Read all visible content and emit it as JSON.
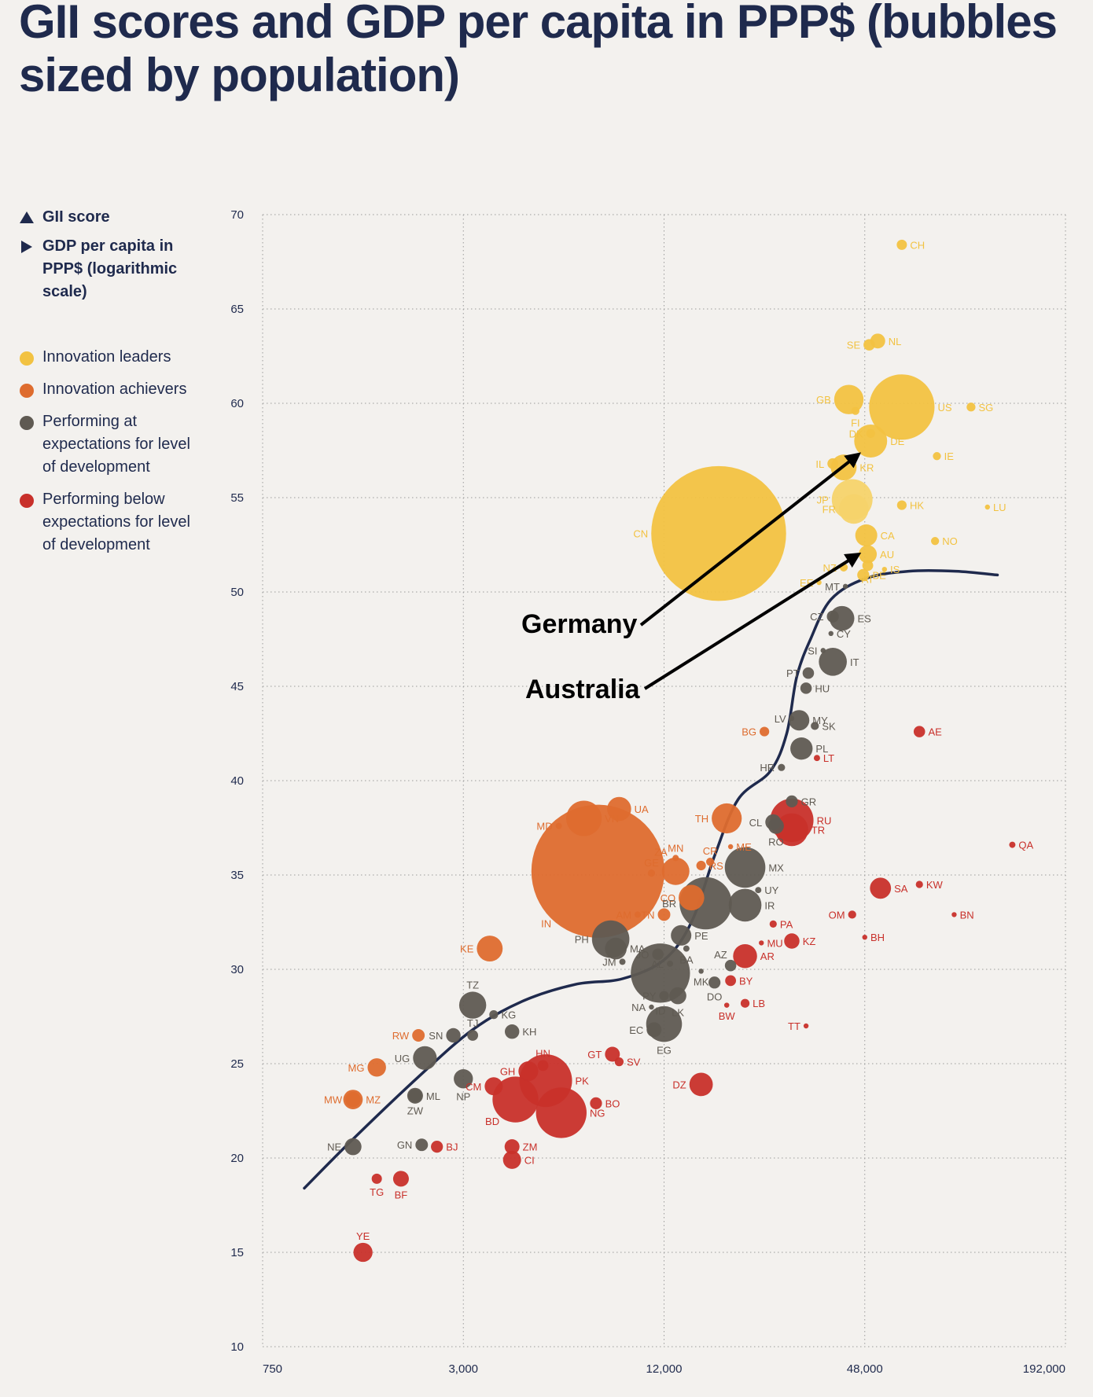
{
  "title": "GII scores and GDP per capita in PPP$ (bubbles sized by population)",
  "legend": {
    "axes": [
      {
        "symbol": "triangle-up",
        "label": "GII score"
      },
      {
        "symbol": "triangle-right",
        "label": "GDP per capita in PPP$ (logarithmic scale)"
      }
    ],
    "groups": [
      {
        "key": "leader",
        "label": "Innovation leaders",
        "color": "#f2c241"
      },
      {
        "key": "achiever",
        "label": "Innovation achievers",
        "color": "#de6c2e"
      },
      {
        "key": "expect",
        "label": "Performing at expectations for level of development",
        "color": "#5f5a52"
      },
      {
        "key": "below",
        "label": "Performing below expectations for level of development",
        "color": "#c8302a"
      }
    ]
  },
  "chart_data": {
    "type": "scatter",
    "xscale": "log",
    "xlim": [
      750,
      192000
    ],
    "ylim": [
      10,
      70
    ],
    "x_ticks": [
      750,
      3000,
      12000,
      48000,
      192000
    ],
    "x_tick_labels": [
      "750",
      "3,000",
      "12,000",
      "48,000",
      "192,000"
    ],
    "y_ticks": [
      10,
      15,
      20,
      25,
      30,
      35,
      40,
      45,
      50,
      55,
      60,
      65,
      70
    ],
    "grid": true,
    "legend_position": "left",
    "group_colors": {
      "leader": "#f2c241",
      "leader_light": "#f6d36a",
      "achiever": "#de6c2e",
      "expect": "#5f5a52",
      "below": "#c8302a"
    },
    "points": [
      {
        "code": "CH",
        "gdp": 62000,
        "gii": 68.4,
        "pop": 8,
        "group": "leader"
      },
      {
        "code": "NL",
        "gdp": 52500,
        "gii": 63.3,
        "pop": 17,
        "group": "leader"
      },
      {
        "code": "SE",
        "gdp": 49500,
        "gii": 63.1,
        "pop": 10,
        "group": "leader"
      },
      {
        "code": "GB",
        "gdp": 43000,
        "gii": 60.2,
        "pop": 66,
        "group": "leader"
      },
      {
        "code": "US",
        "gdp": 62000,
        "gii": 59.8,
        "pop": 327,
        "group": "leader"
      },
      {
        "code": "SG",
        "gdp": 100000,
        "gii": 59.8,
        "pop": 6,
        "group": "leader"
      },
      {
        "code": "FI",
        "gdp": 45000,
        "gii": 59.6,
        "pop": 5,
        "group": "leader"
      },
      {
        "code": "DK",
        "gdp": 50000,
        "gii": 58.4,
        "pop": 6,
        "group": "leader"
      },
      {
        "code": "DE",
        "gdp": 50000,
        "gii": 58.0,
        "pop": 83,
        "group": "leader"
      },
      {
        "code": "IE",
        "gdp": 79000,
        "gii": 57.2,
        "pop": 5,
        "group": "leader"
      },
      {
        "code": "IL",
        "gdp": 38500,
        "gii": 56.8,
        "pop": 9,
        "group": "leader"
      },
      {
        "code": "KR",
        "gdp": 41500,
        "gii": 56.6,
        "pop": 51,
        "group": "leader"
      },
      {
        "code": "JP",
        "gdp": 44000,
        "gii": 54.9,
        "pop": 127,
        "group": "leader_light"
      },
      {
        "code": "HK",
        "gdp": 62000,
        "gii": 54.6,
        "pop": 7,
        "group": "leader"
      },
      {
        "code": "LU",
        "gdp": 112000,
        "gii": 54.5,
        "pop": 1,
        "group": "leader"
      },
      {
        "code": "FR",
        "gdp": 44500,
        "gii": 54.4,
        "pop": 67,
        "group": "leader_light"
      },
      {
        "code": "CN",
        "gdp": 17500,
        "gii": 53.1,
        "pop": 1390,
        "group": "leader"
      },
      {
        "code": "CA",
        "gdp": 48500,
        "gii": 53.0,
        "pop": 37,
        "group": "leader"
      },
      {
        "code": "NO",
        "gdp": 78000,
        "gii": 52.7,
        "pop": 5,
        "group": "leader"
      },
      {
        "code": "AU",
        "gdp": 49000,
        "gii": 52.0,
        "pop": 25,
        "group": "leader"
      },
      {
        "code": "NZ",
        "gdp": 41500,
        "gii": 51.3,
        "pop": 5,
        "group": "leader"
      },
      {
        "code": "IS",
        "gdp": 55000,
        "gii": 51.2,
        "pop": 1,
        "group": "leader"
      },
      {
        "code": "BE",
        "gdp": 47500,
        "gii": 50.9,
        "pop": 11,
        "group": "leader"
      },
      {
        "code": "AT",
        "gdp": 49000,
        "gii": 51.4,
        "pop": 9,
        "group": "leader"
      },
      {
        "code": "EE",
        "gdp": 35000,
        "gii": 50.5,
        "pop": 1,
        "group": "leader"
      },
      {
        "code": "MT",
        "gdp": 42000,
        "gii": 50.3,
        "pop": 1,
        "group": "expect"
      },
      {
        "code": "CZ",
        "gdp": 38500,
        "gii": 48.7,
        "pop": 11,
        "group": "expect"
      },
      {
        "code": "ES",
        "gdp": 41000,
        "gii": 48.6,
        "pop": 47,
        "group": "expect"
      },
      {
        "code": "CY",
        "gdp": 38000,
        "gii": 47.8,
        "pop": 1,
        "group": "expect"
      },
      {
        "code": "SI",
        "gdp": 36000,
        "gii": 46.9,
        "pop": 2,
        "group": "expect"
      },
      {
        "code": "IT",
        "gdp": 38500,
        "gii": 46.3,
        "pop": 60,
        "group": "expect"
      },
      {
        "code": "PT",
        "gdp": 32500,
        "gii": 45.7,
        "pop": 10,
        "group": "expect"
      },
      {
        "code": "HU",
        "gdp": 32000,
        "gii": 44.9,
        "pop": 10,
        "group": "expect"
      },
      {
        "code": "MY",
        "gdp": 30500,
        "gii": 43.2,
        "pop": 32,
        "group": "expect"
      },
      {
        "code": "LV",
        "gdp": 29000,
        "gii": 43.3,
        "pop": 2,
        "group": "expect"
      },
      {
        "code": "SK",
        "gdp": 34000,
        "gii": 42.9,
        "pop": 5,
        "group": "expect"
      },
      {
        "code": "BG",
        "gdp": 24000,
        "gii": 42.6,
        "pop": 7,
        "group": "achiever"
      },
      {
        "code": "AE",
        "gdp": 70000,
        "gii": 42.6,
        "pop": 10,
        "group": "below"
      },
      {
        "code": "PL",
        "gdp": 31000,
        "gii": 41.7,
        "pop": 38,
        "group": "expect"
      },
      {
        "code": "LT",
        "gdp": 34500,
        "gii": 41.2,
        "pop": 3,
        "group": "below"
      },
      {
        "code": "HR",
        "gdp": 27000,
        "gii": 40.7,
        "pop": 4,
        "group": "expect"
      },
      {
        "code": "GR",
        "gdp": 29000,
        "gii": 38.9,
        "pop": 11,
        "group": "expect"
      },
      {
        "code": "UA",
        "gdp": 8800,
        "gii": 38.5,
        "pop": 44,
        "group": "achiever"
      },
      {
        "code": "VN",
        "gdp": 6900,
        "gii": 38.0,
        "pop": 96,
        "group": "achiever"
      },
      {
        "code": "TH",
        "gdp": 18500,
        "gii": 38.0,
        "pop": 69,
        "group": "achiever"
      },
      {
        "code": "RU",
        "gdp": 29000,
        "gii": 37.9,
        "pop": 144,
        "group": "below"
      },
      {
        "code": "CL",
        "gdp": 25500,
        "gii": 37.8,
        "pop": 19,
        "group": "expect"
      },
      {
        "code": "MD",
        "gdp": 5800,
        "gii": 37.6,
        "pop": 3,
        "group": "achiever"
      },
      {
        "code": "RO",
        "gdp": 26000,
        "gii": 37.6,
        "pop": 19,
        "group": "expect"
      },
      {
        "code": "TR",
        "gdp": 29000,
        "gii": 37.4,
        "pop": 82,
        "group": "below"
      },
      {
        "code": "QA",
        "gdp": 133000,
        "gii": 36.6,
        "pop": 3,
        "group": "below"
      },
      {
        "code": "ME",
        "gdp": 19000,
        "gii": 36.5,
        "pop": 1,
        "group": "achiever"
      },
      {
        "code": "MN",
        "gdp": 13000,
        "gii": 35.9,
        "pop": 3,
        "group": "achiever"
      },
      {
        "code": "CR",
        "gdp": 16500,
        "gii": 35.7,
        "pop": 5,
        "group": "achiever"
      },
      {
        "code": "RS",
        "gdp": 15500,
        "gii": 35.5,
        "pop": 7,
        "group": "achiever"
      },
      {
        "code": "MX",
        "gdp": 21000,
        "gii": 35.4,
        "pop": 126,
        "group": "expect"
      },
      {
        "code": "IN",
        "gdp": 7600,
        "gii": 35.2,
        "pop": 1353,
        "group": "achiever"
      },
      {
        "code": "GE",
        "gdp": 11000,
        "gii": 35.1,
        "pop": 4,
        "group": "achiever"
      },
      {
        "code": "ZA",
        "gdp": 13000,
        "gii": 35.2,
        "pop": 58,
        "group": "achiever"
      },
      {
        "code": "SA",
        "gdp": 53500,
        "gii": 34.3,
        "pop": 34,
        "group": "below"
      },
      {
        "code": "KW",
        "gdp": 70000,
        "gii": 34.5,
        "pop": 4,
        "group": "below"
      },
      {
        "code": "UY",
        "gdp": 23000,
        "gii": 34.2,
        "pop": 3,
        "group": "expect"
      },
      {
        "code": "CO",
        "gdp": 14500,
        "gii": 33.8,
        "pop": 50,
        "group": "achiever"
      },
      {
        "code": "IR",
        "gdp": 21000,
        "gii": 33.4,
        "pop": 82,
        "group": "expect"
      },
      {
        "code": "BR",
        "gdp": 16000,
        "gii": 33.5,
        "pop": 209,
        "group": "expect"
      },
      {
        "code": "BN",
        "gdp": 89000,
        "gii": 32.9,
        "pop": 1,
        "group": "below"
      },
      {
        "code": "OM",
        "gdp": 44000,
        "gii": 32.9,
        "pop": 5,
        "group": "below"
      },
      {
        "code": "AM",
        "gdp": 10000,
        "gii": 32.9,
        "pop": 3,
        "group": "achiever"
      },
      {
        "code": "TN",
        "gdp": 12000,
        "gii": 32.9,
        "pop": 12,
        "group": "achiever"
      },
      {
        "code": "PA",
        "gdp": 25500,
        "gii": 32.4,
        "pop": 4,
        "group": "below"
      },
      {
        "code": "PE",
        "gdp": 13500,
        "gii": 31.8,
        "pop": 32,
        "group": "expect"
      },
      {
        "code": "BH",
        "gdp": 48000,
        "gii": 31.7,
        "pop": 1,
        "group": "below"
      },
      {
        "code": "PH",
        "gdp": 8300,
        "gii": 31.6,
        "pop": 107,
        "group": "expect"
      },
      {
        "code": "KZ",
        "gdp": 29000,
        "gii": 31.5,
        "pop": 18,
        "group": "below"
      },
      {
        "code": "MA",
        "gdp": 8600,
        "gii": 31.1,
        "pop": 36,
        "group": "expect"
      },
      {
        "code": "MU",
        "gdp": 23500,
        "gii": 31.4,
        "pop": 1,
        "group": "below"
      },
      {
        "code": "KE",
        "gdp": 3600,
        "gii": 31.1,
        "pop": 51,
        "group": "achiever"
      },
      {
        "code": "BA",
        "gdp": 14000,
        "gii": 31.1,
        "pop": 3,
        "group": "expect"
      },
      {
        "code": "JO",
        "gdp": 11500,
        "gii": 30.8,
        "pop": 10,
        "group": "expect"
      },
      {
        "code": "AR",
        "gdp": 21000,
        "gii": 30.7,
        "pop": 44,
        "group": "below"
      },
      {
        "code": "JM",
        "gdp": 9000,
        "gii": 30.4,
        "pop": 3,
        "group": "expect"
      },
      {
        "code": "AL",
        "gdp": 12500,
        "gii": 30.3,
        "pop": 3,
        "group": "expect"
      },
      {
        "code": "AZ",
        "gdp": 19000,
        "gii": 30.2,
        "pop": 10,
        "group": "expect"
      },
      {
        "code": "MK",
        "gdp": 15500,
        "gii": 29.9,
        "pop": 2,
        "group": "expect"
      },
      {
        "code": "ID",
        "gdp": 11700,
        "gii": 29.8,
        "pop": 268,
        "group": "expect"
      },
      {
        "code": "BY",
        "gdp": 19000,
        "gii": 29.4,
        "pop": 9,
        "group": "below"
      },
      {
        "code": "DO",
        "gdp": 17000,
        "gii": 29.3,
        "pop": 11,
        "group": "expect"
      },
      {
        "code": "PY",
        "gdp": 12000,
        "gii": 28.6,
        "pop": 7,
        "group": "expect"
      },
      {
        "code": "LK",
        "gdp": 13200,
        "gii": 28.6,
        "pop": 22,
        "group": "expect"
      },
      {
        "code": "LB",
        "gdp": 21000,
        "gii": 28.2,
        "pop": 6,
        "group": "below"
      },
      {
        "code": "BW",
        "gdp": 18500,
        "gii": 28.1,
        "pop": 2,
        "group": "below"
      },
      {
        "code": "NA",
        "gdp": 11000,
        "gii": 28.0,
        "pop": 2,
        "group": "expect"
      },
      {
        "code": "TZ",
        "gdp": 3200,
        "gii": 28.1,
        "pop": 56,
        "group": "expect"
      },
      {
        "code": "KG",
        "gdp": 3700,
        "gii": 27.6,
        "pop": 6,
        "group": "expect"
      },
      {
        "code": "EG",
        "gdp": 12000,
        "gii": 27.1,
        "pop": 98,
        "group": "expect"
      },
      {
        "code": "TT",
        "gdp": 32000,
        "gii": 27.0,
        "pop": 1,
        "group": "below"
      },
      {
        "code": "EC",
        "gdp": 11200,
        "gii": 26.8,
        "pop": 17,
        "group": "expect"
      },
      {
        "code": "KH",
        "gdp": 4200,
        "gii": 26.7,
        "pop": 16,
        "group": "expect"
      },
      {
        "code": "SN",
        "gdp": 2800,
        "gii": 26.5,
        "pop": 16,
        "group": "expect"
      },
      {
        "code": "TJ",
        "gdp": 3200,
        "gii": 26.5,
        "pop": 9,
        "group": "expect"
      },
      {
        "code": "RW",
        "gdp": 2200,
        "gii": 26.5,
        "pop": 12,
        "group": "achiever"
      },
      {
        "code": "GT",
        "gdp": 8400,
        "gii": 25.5,
        "pop": 17,
        "group": "below"
      },
      {
        "code": "UG",
        "gdp": 2300,
        "gii": 25.3,
        "pop": 43,
        "group": "expect"
      },
      {
        "code": "SV",
        "gdp": 8800,
        "gii": 25.1,
        "pop": 6,
        "group": "below"
      },
      {
        "code": "HN",
        "gdp": 5200,
        "gii": 24.9,
        "pop": 9,
        "group": "below"
      },
      {
        "code": "MG",
        "gdp": 1650,
        "gii": 24.8,
        "pop": 26,
        "group": "achiever"
      },
      {
        "code": "GH",
        "gdp": 4700,
        "gii": 24.6,
        "pop": 30,
        "group": "below"
      },
      {
        "code": "PK",
        "gdp": 5300,
        "gii": 24.1,
        "pop": 212,
        "group": "below"
      },
      {
        "code": "DZ",
        "gdp": 15500,
        "gii": 23.9,
        "pop": 42,
        "group": "below"
      },
      {
        "code": "CM",
        "gdp": 3700,
        "gii": 23.8,
        "pop": 25,
        "group": "below"
      },
      {
        "code": "NP",
        "gdp": 3000,
        "gii": 24.2,
        "pop": 28,
        "group": "expect"
      },
      {
        "code": "ML",
        "gdp": 2150,
        "gii": 23.3,
        "pop": 19,
        "group": "expect"
      },
      {
        "code": "MW",
        "gdp": 1400,
        "gii": 23.1,
        "pop": 18,
        "group": "achiever"
      },
      {
        "code": "MZ",
        "gdp": 1400,
        "gii": 23.1,
        "pop": 29,
        "group": "achiever"
      },
      {
        "code": "BD",
        "gdp": 4300,
        "gii": 23.1,
        "pop": 161,
        "group": "below"
      },
      {
        "code": "BO",
        "gdp": 7500,
        "gii": 22.9,
        "pop": 11,
        "group": "below"
      },
      {
        "code": "ZW",
        "gdp": 2150,
        "gii": 23.3,
        "pop": 14,
        "group": "expect"
      },
      {
        "code": "NG",
        "gdp": 5900,
        "gii": 22.4,
        "pop": 196,
        "group": "below"
      },
      {
        "code": "GN",
        "gdp": 2250,
        "gii": 20.7,
        "pop": 12,
        "group": "expect"
      },
      {
        "code": "BJ",
        "gdp": 2500,
        "gii": 20.6,
        "pop": 11,
        "group": "below"
      },
      {
        "code": "ZM",
        "gdp": 4200,
        "gii": 20.6,
        "pop": 17,
        "group": "below"
      },
      {
        "code": "NE",
        "gdp": 1400,
        "gii": 20.6,
        "pop": 22,
        "group": "expect"
      },
      {
        "code": "CI",
        "gdp": 4200,
        "gii": 19.9,
        "pop": 25,
        "group": "below"
      },
      {
        "code": "TG",
        "gdp": 1650,
        "gii": 18.9,
        "pop": 8,
        "group": "below"
      },
      {
        "code": "BF",
        "gdp": 1950,
        "gii": 18.9,
        "pop": 19,
        "group": "below"
      },
      {
        "code": "YE",
        "gdp": 1500,
        "gii": 15.0,
        "pop": 28,
        "group": "below"
      }
    ],
    "trend_curve": [
      [
        1000,
        18.4
      ],
      [
        1400,
        21.0
      ],
      [
        2200,
        24.3
      ],
      [
        3200,
        26.8
      ],
      [
        4500,
        28.3
      ],
      [
        6500,
        29.2
      ],
      [
        9000,
        29.5
      ],
      [
        12000,
        30.5
      ],
      [
        14500,
        32.5
      ],
      [
        17000,
        36.0
      ],
      [
        20000,
        39.0
      ],
      [
        25000,
        40.5
      ],
      [
        28000,
        42.5
      ],
      [
        30000,
        45.5
      ],
      [
        33000,
        47.5
      ],
      [
        38000,
        49.6
      ],
      [
        48000,
        50.7
      ],
      [
        65000,
        51.1
      ],
      [
        90000,
        51.1
      ],
      [
        120000,
        50.9
      ]
    ],
    "annotations": [
      {
        "text": "Germany",
        "target_gdp": 46000,
        "target_gii": 57.3,
        "target_code": "DE"
      },
      {
        "text": "Australia",
        "target_gdp": 46000,
        "target_gii": 52.0,
        "target_code": "AU"
      }
    ]
  }
}
